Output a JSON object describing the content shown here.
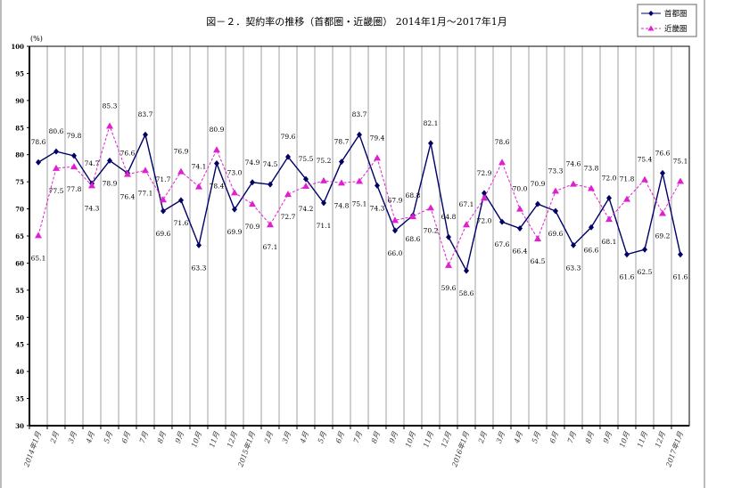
{
  "chart_data": {
    "type": "line",
    "title": "図－２．契約率の推移（首都圏・近畿圏） 2014年1月～2017年1月",
    "ylabel": "(%)",
    "xlabel": "",
    "ylim": [
      30,
      100
    ],
    "yticks": [
      30,
      35,
      40,
      45,
      50,
      55,
      60,
      65,
      70,
      75,
      80,
      85,
      90,
      95,
      100
    ],
    "grid": "vertical",
    "legend": "top-right",
    "categories": [
      "2014年1月",
      "2月",
      "3月",
      "4月",
      "5月",
      "6月",
      "7月",
      "8月",
      "9月",
      "10月",
      "11月",
      "12月",
      "2015年1月",
      "2月",
      "3月",
      "4月",
      "5月",
      "6月",
      "7月",
      "8月",
      "9月",
      "10月",
      "11月",
      "12月",
      "2016年1月",
      "2月",
      "3月",
      "4月",
      "5月",
      "6月",
      "7月",
      "8月",
      "9月",
      "10月",
      "11月",
      "12月",
      "2017年1月"
    ],
    "series": [
      {
        "name": "首都圏",
        "color": "#000066",
        "marker": "diamond",
        "line": "solid",
        "values": [
          78.6,
          80.6,
          79.8,
          74.7,
          78.9,
          76.6,
          83.7,
          69.6,
          71.6,
          63.3,
          78.4,
          69.9,
          74.9,
          74.5,
          79.6,
          75.5,
          71.1,
          78.7,
          83.7,
          74.3,
          66.0,
          68.8,
          82.1,
          64.8,
          58.6,
          72.9,
          67.6,
          66.4,
          70.9,
          69.6,
          63.3,
          66.6,
          72.0,
          61.6,
          62.5,
          76.6,
          61.6
        ]
      },
      {
        "name": "近畿圏",
        "color": "#e020d0",
        "marker": "triangle",
        "line": "dashed",
        "values": [
          65.1,
          77.5,
          77.8,
          74.3,
          85.3,
          76.4,
          77.1,
          71.7,
          76.9,
          74.1,
          80.9,
          73.0,
          70.9,
          67.1,
          72.7,
          74.2,
          75.2,
          74.8,
          75.1,
          79.4,
          67.9,
          68.6,
          70.2,
          59.6,
          67.1,
          72.0,
          78.6,
          70.0,
          64.5,
          73.3,
          74.6,
          73.8,
          68.1,
          71.8,
          75.4,
          69.2,
          75.1
        ]
      }
    ]
  }
}
